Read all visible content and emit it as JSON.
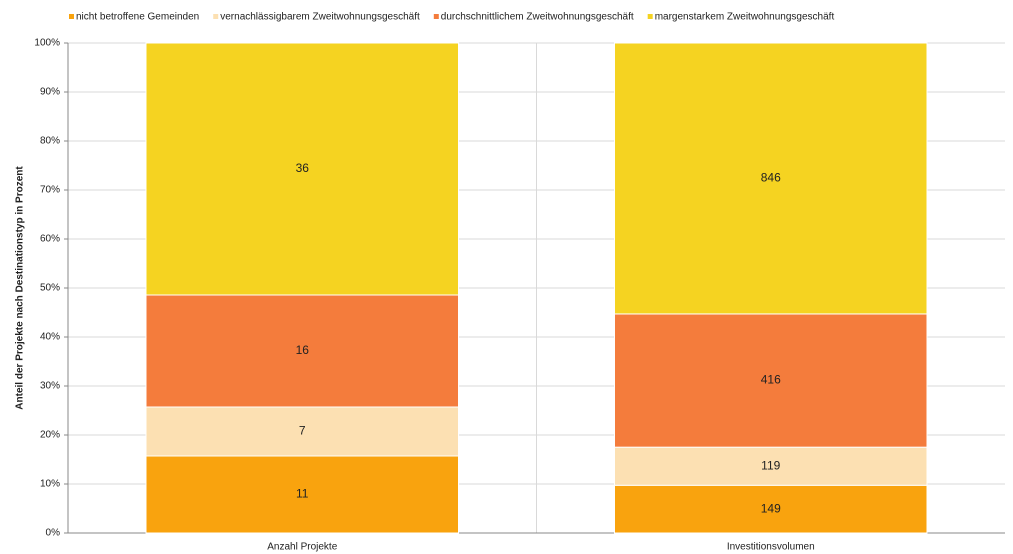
{
  "chart_data": {
    "type": "bar",
    "stacked": "percent",
    "categories": [
      "Anzahl Projekte",
      "Investitionsvolumen"
    ],
    "series": [
      {
        "name": "nicht betroffene Gemeinden",
        "color": "#f9a30e",
        "values": [
          11,
          149
        ]
      },
      {
        "name": "vernachlässigbarem Zweitwohnungsgeschäft",
        "color": "#fce0b2",
        "values": [
          7,
          119
        ]
      },
      {
        "name": "durchschnittlichem Zweitwohnungsgeschäft",
        "color": "#f47c3c",
        "values": [
          16,
          416
        ]
      },
      {
        "name": "margenstarkem Zweitwohnungsgeschäft",
        "color": "#f5d321",
        "values": [
          36,
          846
        ]
      }
    ],
    "y_label": "Anteil der Projekte nach Destinationstyp in Prozent",
    "ylim": [
      0,
      100
    ],
    "yticks": [
      {
        "value": 0,
        "label": "0%"
      },
      {
        "value": 10,
        "label": "10%"
      },
      {
        "value": 20,
        "label": "20%"
      },
      {
        "value": 30,
        "label": "30%"
      },
      {
        "value": 40,
        "label": "40%"
      },
      {
        "value": 50,
        "label": "50%"
      },
      {
        "value": 60,
        "label": "60%"
      },
      {
        "value": 70,
        "label": "70%"
      },
      {
        "value": 80,
        "label": "80%"
      },
      {
        "value": 90,
        "label": "90%"
      },
      {
        "value": 100,
        "label": "100%"
      }
    ],
    "grid": true,
    "legend": "top"
  }
}
